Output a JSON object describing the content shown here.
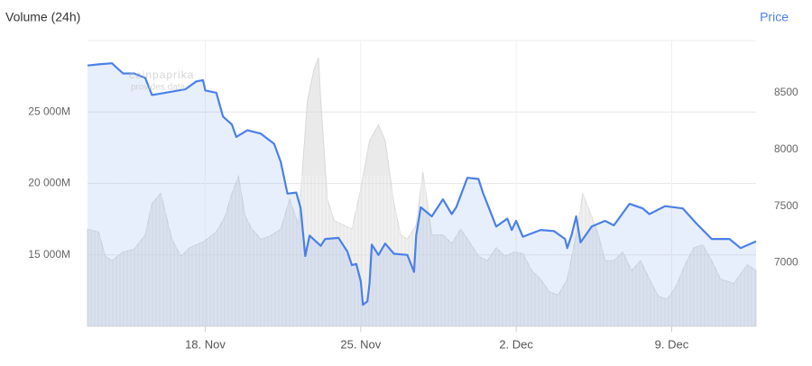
{
  "chart_data": {
    "type": "line",
    "ylabel": "Volume (24h)",
    "y2label": "Price",
    "watermark": [
      "coinpaprika",
      "provides data"
    ],
    "xlim": [
      12.7,
      42.8
    ],
    "xticks": [
      {
        "value": 18,
        "label": "18. Nov"
      },
      {
        "value": 25,
        "label": "25. Nov"
      },
      {
        "value": 32,
        "label": "2. Dec"
      },
      {
        "value": 39,
        "label": "9. Dec"
      }
    ],
    "ylim": [
      10000,
      30000
    ],
    "yticks": [
      {
        "value": 15000,
        "label": "15 000M"
      },
      {
        "value": 20000,
        "label": "20 000M"
      },
      {
        "value": 25000,
        "label": "25 000M"
      }
    ],
    "y2lim": [
      6440,
      8960
    ],
    "y2ticks": [
      7000,
      7500,
      8000,
      8500
    ],
    "grid": true,
    "series": [
      {
        "kind": "area",
        "color": "#d9d9d9",
        "x": [
          12.7,
          13.2,
          13.5,
          13.8,
          14.3,
          14.8,
          15.3,
          15.6,
          16.0,
          16.2,
          16.5,
          16.9,
          17.3,
          17.9,
          18.5,
          18.9,
          19.2,
          19.5,
          19.8,
          20.1,
          20.5,
          20.9,
          21.4,
          21.8,
          22.2,
          22.6,
          22.9,
          23.1,
          23.2,
          23.5,
          23.8,
          24.2,
          24.6,
          25.0,
          25.4,
          25.8,
          26.1,
          26.5,
          26.8,
          27.1,
          27.5,
          27.8,
          28.2,
          28.7,
          29.1,
          29.5,
          29.9,
          30.3,
          30.7,
          31.1,
          31.5,
          31.9,
          32.3,
          32.7,
          33.1,
          33.5,
          33.9,
          34.3,
          34.7,
          35.0,
          35.4,
          35.7,
          36.0,
          36.4,
          36.8,
          37.2,
          37.6,
          38.0,
          38.4,
          38.8,
          39.2,
          39.6,
          40.0,
          40.4,
          40.8,
          41.2,
          41.8,
          42.4,
          42.8
        ],
        "values": [
          16800,
          16600,
          14900,
          14600,
          15200,
          15400,
          16400,
          18600,
          19300,
          18000,
          16100,
          14900,
          15500,
          15900,
          16600,
          17700,
          19300,
          20500,
          17700,
          16800,
          16100,
          16300,
          16800,
          18900,
          17100,
          25800,
          28000,
          28800,
          25800,
          18900,
          17400,
          17100,
          16800,
          19600,
          23000,
          24100,
          23000,
          18600,
          16400,
          16100,
          17100,
          20800,
          16400,
          16400,
          15800,
          16800,
          15900,
          14900,
          14600,
          15500,
          14900,
          15200,
          15100,
          13900,
          13300,
          12400,
          12200,
          13300,
          16400,
          19300,
          17700,
          16400,
          14600,
          14600,
          15200,
          13900,
          14600,
          13300,
          12100,
          11900,
          12800,
          14300,
          15500,
          15700,
          14600,
          13300,
          13000,
          14300,
          13900
        ]
      },
      {
        "kind": "line",
        "axis": "y2",
        "color": "#4a80e8",
        "x": [
          12.7,
          13.2,
          13.8,
          14.3,
          14.8,
          15.3,
          15.6,
          16.2,
          17.1,
          17.6,
          17.9,
          18.0,
          18.5,
          18.8,
          19.2,
          19.4,
          19.9,
          20.5,
          21.1,
          21.4,
          21.7,
          22.1,
          22.3,
          22.5,
          22.7,
          23.2,
          23.4,
          24.0,
          24.4,
          24.6,
          24.8,
          25.0,
          25.1,
          25.3,
          25.4,
          25.5,
          25.8,
          26.1,
          26.5,
          27.1,
          27.4,
          27.5,
          27.7,
          28.2,
          28.7,
          29.1,
          29.3,
          29.8,
          30.3,
          30.5,
          31.1,
          31.6,
          31.8,
          32.0,
          32.3,
          33.1,
          33.7,
          34.2,
          34.3,
          34.5,
          34.7,
          34.9,
          35.4,
          36.0,
          36.4,
          37.1,
          37.7,
          38.0,
          38.7,
          39.5,
          40.1,
          40.8,
          41.6,
          42.1,
          42.8
        ],
        "values": [
          8740,
          8750,
          8760,
          8670,
          8670,
          8630,
          8480,
          8500,
          8530,
          8600,
          8610,
          8520,
          8500,
          8290,
          8220,
          8110,
          8170,
          8140,
          8050,
          7890,
          7610,
          7620,
          7480,
          7060,
          7240,
          7150,
          7210,
          7220,
          7100,
          6980,
          6990,
          6840,
          6630,
          6660,
          6820,
          7160,
          7070,
          7170,
          7080,
          7070,
          6920,
          7240,
          7490,
          7410,
          7560,
          7430,
          7490,
          7750,
          7740,
          7620,
          7320,
          7390,
          7290,
          7370,
          7230,
          7290,
          7280,
          7210,
          7130,
          7250,
          7410,
          7180,
          7320,
          7370,
          7330,
          7520,
          7480,
          7430,
          7500,
          7480,
          7350,
          7210,
          7210,
          7130,
          7190
        ]
      }
    ]
  }
}
